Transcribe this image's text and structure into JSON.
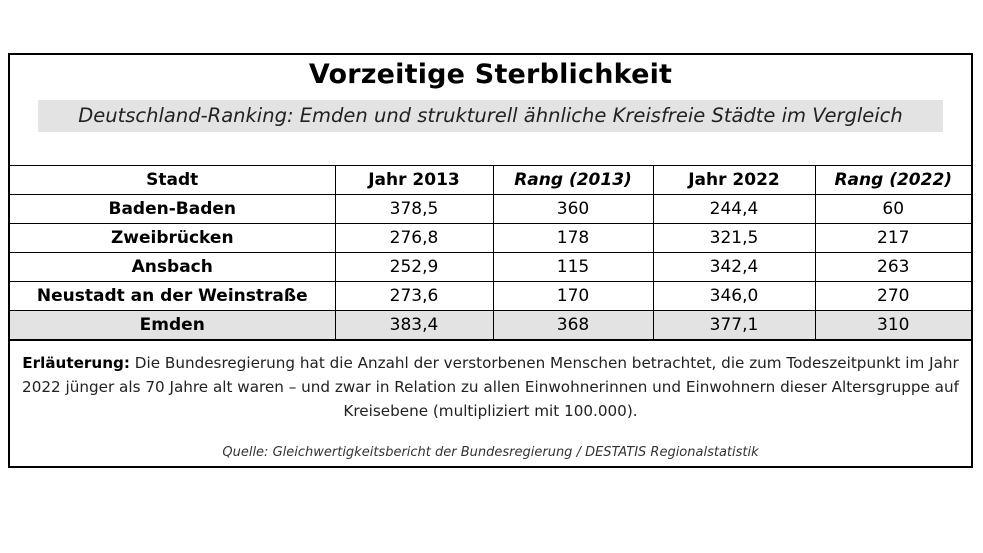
{
  "title": "Vorzeitige Sterblichkeit",
  "subtitle": "Deutschland-Ranking: Emden und strukturell ähnliche Kreisfreie Städte im Vergleich",
  "table": {
    "headers": [
      "Stadt",
      "Jahr 2013",
      "Rang (2013)",
      "Jahr 2022",
      "Rang (2022)"
    ],
    "rows": [
      [
        "Baden-Baden",
        "378,5",
        "360",
        "244,4",
        "60"
      ],
      [
        "Zweibrücken",
        "276,8",
        "178",
        "321,5",
        "217"
      ],
      [
        "Ansbach",
        "252,9",
        "115",
        "342,4",
        "263"
      ],
      [
        "Neustadt an der Weinstraße",
        "273,6",
        "170",
        "346,0",
        "270"
      ],
      [
        "Emden",
        "383,4",
        "368",
        "377,1",
        "310"
      ]
    ],
    "highlight_row": "Emden",
    "highlight_color": "#e3e3e3"
  },
  "note": {
    "label": "Erläuterung:",
    "text": " Die Bundesregierung hat die Anzahl der verstorbenen Menschen betrachtet, die zum Todeszeitpunkt im Jahr 2022 jünger als 70 Jahre alt waren – und zwar in Relation zu allen Einwohnerinnen und Einwohnern dieser Altersgruppe auf Kreisebene (multipliziert mit 100.000)."
  },
  "source": "Quelle: Gleichwertigkeitsbericht der Bundesregierung / DESTATIS Regionalstatistik"
}
